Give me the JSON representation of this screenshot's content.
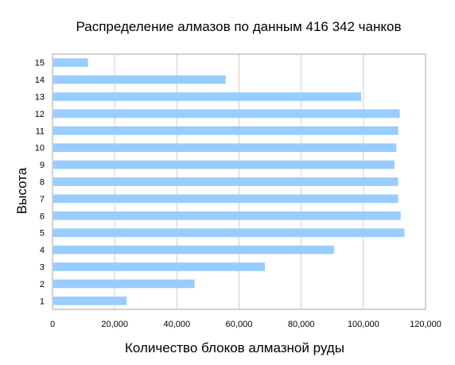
{
  "chart_data": {
    "type": "bar",
    "orientation": "horizontal",
    "title": "Распределение алмазов по данным 416 342 чанков",
    "xlabel": "Количество блоков алмазной руды",
    "ylabel": "Высота",
    "categories": [
      "1",
      "2",
      "3",
      "4",
      "5",
      "6",
      "7",
      "8",
      "9",
      "10",
      "11",
      "12",
      "13",
      "14",
      "15"
    ],
    "values": [
      23800,
      45700,
      68300,
      90500,
      113200,
      112000,
      111200,
      111200,
      110000,
      110600,
      111200,
      111700,
      99300,
      55700,
      11400
    ],
    "xlim": [
      0,
      120000
    ],
    "xticks": [
      0,
      20000,
      40000,
      60000,
      80000,
      100000,
      120000
    ],
    "xtick_labels": [
      "0",
      "20,000",
      "40,000",
      "60,000",
      "80,000",
      "100,000",
      "120,000"
    ],
    "grid": true,
    "bar_color": "#99ccff"
  }
}
